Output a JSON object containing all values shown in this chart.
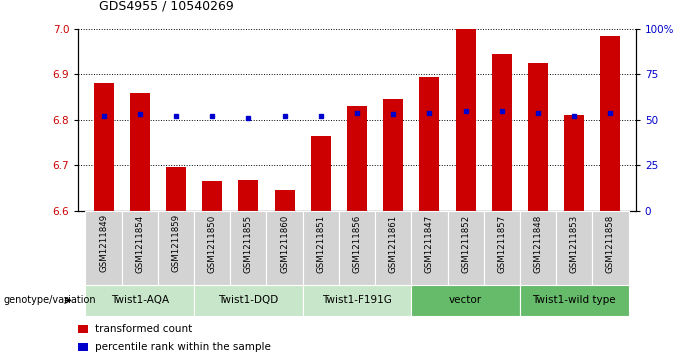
{
  "title": "GDS4955 / 10540269",
  "samples": [
    "GSM1211849",
    "GSM1211854",
    "GSM1211859",
    "GSM1211850",
    "GSM1211855",
    "GSM1211860",
    "GSM1211851",
    "GSM1211856",
    "GSM1211861",
    "GSM1211847",
    "GSM1211852",
    "GSM1211857",
    "GSM1211848",
    "GSM1211853",
    "GSM1211858"
  ],
  "bar_values": [
    6.88,
    6.86,
    6.695,
    6.665,
    6.668,
    6.645,
    6.765,
    6.83,
    6.845,
    6.895,
    7.0,
    6.945,
    6.925,
    6.81,
    6.985
  ],
  "percentile_values": [
    52,
    53,
    52,
    52,
    51,
    52,
    52,
    54,
    53,
    54,
    55,
    55,
    54,
    52,
    54
  ],
  "bar_bottom": 6.6,
  "ylim": [
    6.6,
    7.0
  ],
  "y2lim": [
    0,
    100
  ],
  "yticks": [
    6.6,
    6.7,
    6.8,
    6.9,
    7.0
  ],
  "y2ticks": [
    0,
    25,
    50,
    75,
    100
  ],
  "bar_color": "#cc0000",
  "percentile_color": "#0000cc",
  "grid_color": "#000000",
  "groups": [
    {
      "label": "Twist1-AQA",
      "start": 0,
      "end": 2,
      "color": "#c8e6c9"
    },
    {
      "label": "Twist1-DQD",
      "start": 3,
      "end": 5,
      "color": "#c8e6c9"
    },
    {
      "label": "Twist1-F191G",
      "start": 6,
      "end": 8,
      "color": "#c8e6c9"
    },
    {
      "label": "vector",
      "start": 9,
      "end": 11,
      "color": "#66bb6a"
    },
    {
      "label": "Twist1-wild type",
      "start": 12,
      "end": 14,
      "color": "#66bb6a"
    }
  ],
  "legend_items": [
    {
      "label": "transformed count",
      "color": "#cc0000"
    },
    {
      "label": "percentile rank within the sample",
      "color": "#0000cc"
    }
  ],
  "genotype_label": "genotype/variation",
  "background_color": "#ffffff",
  "axes_bg_color": "#ffffff",
  "sample_bg_color": "#d3d3d3",
  "bar_width": 0.55
}
